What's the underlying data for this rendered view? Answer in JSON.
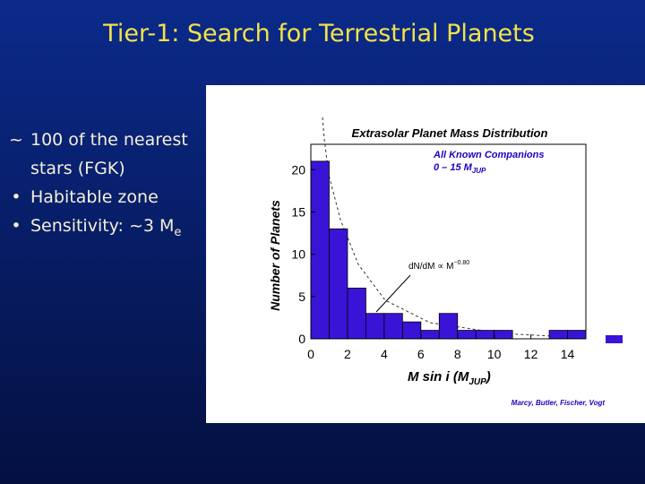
{
  "slide": {
    "title": "Tier-1: Search for Terrestrial Planets",
    "bullets": [
      {
        "marker": "~",
        "text": "100 of the nearest",
        "text2": "stars (FGK)"
      },
      {
        "text": "Habitable zone"
      },
      {
        "text": "Sensitivity: ~3 M",
        "sub": "e"
      }
    ]
  },
  "chart_data": {
    "type": "histogram",
    "title": "Extrasolar Planet Mass Distribution",
    "annotation1": "All Known Companions",
    "annotation2": {
      "text": "0 – 15 M",
      "sub": "JUP"
    },
    "fit_label": {
      "text": "dN/dM ∝ M",
      "sup": "−0.80"
    },
    "credit": "Marcy, Butler, Fischer, Vogt",
    "ylabel": "Number of Planets",
    "xlabel": {
      "text": "M sin i  (M",
      "sub": "JUP",
      "end": ")"
    },
    "bins": [
      0,
      1,
      2,
      3,
      4,
      5,
      6,
      7,
      8,
      9,
      10,
      11,
      12,
      13,
      14,
      15
    ],
    "values": [
      21,
      13,
      6,
      3,
      3,
      2,
      1,
      3,
      1,
      1,
      1,
      0,
      0,
      1,
      1
    ],
    "color": "#3a14d6",
    "xlim": [
      0,
      15
    ],
    "ylim": [
      0,
      23
    ],
    "xticks": [
      0,
      2,
      4,
      6,
      8,
      10,
      12,
      14
    ],
    "yticks": [
      0,
      5,
      10,
      15,
      20
    ]
  }
}
